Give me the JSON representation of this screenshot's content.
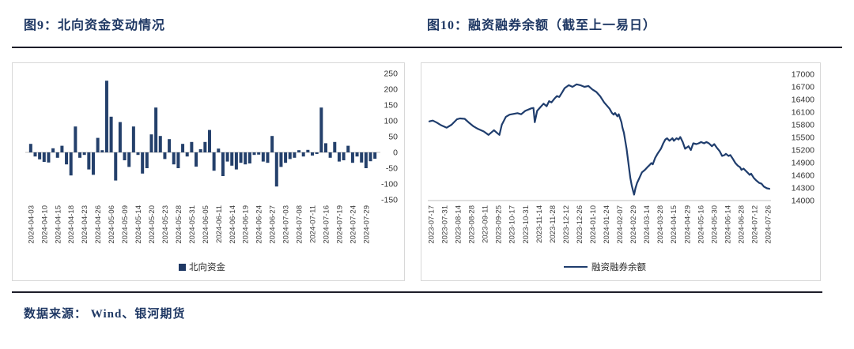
{
  "page": {
    "accent_color": "#1f3864",
    "bar_color": "#24406b",
    "line_color": "#1f3d6d",
    "footer": "数据来源：  Wind、银河期货"
  },
  "figure9": {
    "title": "图9：北向资金变动情况",
    "legend": "北向资金"
  },
  "figure10": {
    "title": "图10：融资融券余额（截至上一易日）",
    "legend": "融资融券余额"
  },
  "chart_data": [
    {
      "type": "bar",
      "title": "图9：北向资金变动情况",
      "legend": "北向资金",
      "bar_color": "#24406b",
      "ylim": [
        -150,
        250
      ],
      "yticks": [
        250,
        200,
        150,
        100,
        50,
        0,
        -50,
        -100,
        -150
      ],
      "grid": false,
      "legend_position": "bottom",
      "label_every": 3,
      "tick_labels": [
        "2024-04-03",
        "2024-04-10",
        "2024-04-15",
        "2024-04-18",
        "2024-04-23",
        "2024-04-26",
        "2024-05-06",
        "2024-05-09",
        "2024-05-14",
        "2024-05-20",
        "2024-05-23",
        "2024-05-28",
        "2024-05-31",
        "2024-06-05",
        "2024-06-11",
        "2024-06-14",
        "2024-06-19",
        "2024-06-24",
        "2024-06-27",
        "2024-07-03",
        "2024-07-08",
        "2024-07-11",
        "2024-07-16",
        "2024-07-19",
        "2024-07-24",
        "2024-07-29"
      ],
      "values": [
        27,
        -13,
        -22,
        -30,
        -32,
        13,
        -17,
        21,
        -38,
        -73,
        82,
        -17,
        -8,
        -54,
        -71,
        46,
        7,
        227,
        113,
        -89,
        96,
        -25,
        -46,
        82,
        -8,
        -67,
        -50,
        57,
        142,
        52,
        -21,
        42,
        -38,
        -50,
        27,
        -13,
        33,
        -45,
        10,
        33,
        71,
        -58,
        12,
        -75,
        -29,
        -42,
        -54,
        -33,
        -38,
        -35,
        -8,
        -7,
        -29,
        -33,
        52,
        -108,
        -46,
        -33,
        -21,
        -17,
        7,
        -13,
        8,
        -10,
        -5,
        142,
        29,
        -17,
        33,
        -29,
        -25,
        21,
        -33,
        -13,
        -32,
        -50,
        -28,
        -20
      ]
    },
    {
      "type": "line",
      "title": "图10：融资融券余额（截至上一易日）",
      "legend": "融资融券余额",
      "line_color": "#1f3d6d",
      "ylim": [
        14000,
        17000
      ],
      "yticks": [
        17000,
        16700,
        16400,
        16100,
        15800,
        15500,
        15200,
        14900,
        14600,
        14300,
        14000
      ],
      "grid": false,
      "legend_position": "bottom",
      "x_tick_labels": [
        "2023-07-17",
        "2023-07-31",
        "2023-08-14",
        "2023-08-28",
        "2023-09-11",
        "2023-09-25",
        "2023-10-17",
        "2023-10-31",
        "2023-11-14",
        "2023-11-28",
        "2023-12-12",
        "2023-12-26",
        "2024-01-10",
        "2024-01-24",
        "2024-02-07",
        "2024-02-29",
        "2024-03-14",
        "2024-03-28",
        "2024-04-15",
        "2024-04-29",
        "2024-05-16",
        "2024-05-30",
        "2024-06-14",
        "2024-06-28",
        "2024-07-12",
        "2024-07-26"
      ],
      "points": [
        [
          0.0,
          15880
        ],
        [
          0.01,
          15900
        ],
        [
          0.022,
          15850
        ],
        [
          0.034,
          15790
        ],
        [
          0.051,
          15730
        ],
        [
          0.065,
          15800
        ],
        [
          0.081,
          15930
        ],
        [
          0.09,
          15950
        ],
        [
          0.104,
          15940
        ],
        [
          0.118,
          15840
        ],
        [
          0.13,
          15760
        ],
        [
          0.143,
          15700
        ],
        [
          0.16,
          15640
        ],
        [
          0.174,
          15560
        ],
        [
          0.19,
          15670
        ],
        [
          0.2,
          15600
        ],
        [
          0.206,
          15560
        ],
        [
          0.213,
          15800
        ],
        [
          0.225,
          15990
        ],
        [
          0.236,
          16040
        ],
        [
          0.259,
          16075
        ],
        [
          0.27,
          16050
        ],
        [
          0.282,
          16130
        ],
        [
          0.3,
          16190
        ],
        [
          0.306,
          16200
        ],
        [
          0.31,
          15860
        ],
        [
          0.317,
          16130
        ],
        [
          0.329,
          16240
        ],
        [
          0.336,
          16300
        ],
        [
          0.345,
          16240
        ],
        [
          0.352,
          16360
        ],
        [
          0.359,
          16330
        ],
        [
          0.368,
          16420
        ],
        [
          0.375,
          16480
        ],
        [
          0.382,
          16460
        ],
        [
          0.391,
          16575
        ],
        [
          0.398,
          16670
        ],
        [
          0.41,
          16740
        ],
        [
          0.421,
          16700
        ],
        [
          0.433,
          16760
        ],
        [
          0.444,
          16740
        ],
        [
          0.456,
          16700
        ],
        [
          0.468,
          16720
        ],
        [
          0.479,
          16640
        ],
        [
          0.491,
          16580
        ],
        [
          0.502,
          16480
        ],
        [
          0.514,
          16330
        ],
        [
          0.53,
          16180
        ],
        [
          0.537,
          16080
        ],
        [
          0.542,
          16040
        ],
        [
          0.546,
          16080
        ],
        [
          0.553,
          16000
        ],
        [
          0.557,
          16050
        ],
        [
          0.565,
          15860
        ],
        [
          0.568,
          15730
        ],
        [
          0.572,
          15610
        ],
        [
          0.576,
          15420
        ],
        [
          0.58,
          15230
        ],
        [
          0.584,
          14980
        ],
        [
          0.588,
          14730
        ],
        [
          0.591,
          14540
        ],
        [
          0.595,
          14360
        ],
        [
          0.599,
          14230
        ],
        [
          0.602,
          14140
        ],
        [
          0.606,
          14290
        ],
        [
          0.611,
          14420
        ],
        [
          0.618,
          14540
        ],
        [
          0.625,
          14670
        ],
        [
          0.634,
          14730
        ],
        [
          0.641,
          14790
        ],
        [
          0.646,
          14830
        ],
        [
          0.653,
          14890
        ],
        [
          0.657,
          14860
        ],
        [
          0.664,
          15010
        ],
        [
          0.671,
          15110
        ],
        [
          0.681,
          15230
        ],
        [
          0.688,
          15360
        ],
        [
          0.694,
          15450
        ],
        [
          0.699,
          15480
        ],
        [
          0.706,
          15420
        ],
        [
          0.715,
          15480
        ],
        [
          0.719,
          15420
        ],
        [
          0.727,
          15480
        ],
        [
          0.733,
          15450
        ],
        [
          0.738,
          15510
        ],
        [
          0.745,
          15390
        ],
        [
          0.752,
          15230
        ],
        [
          0.762,
          15290
        ],
        [
          0.769,
          15200
        ],
        [
          0.776,
          15360
        ],
        [
          0.785,
          15340
        ],
        [
          0.792,
          15360
        ],
        [
          0.799,
          15390
        ],
        [
          0.808,
          15360
        ],
        [
          0.815,
          15390
        ],
        [
          0.822,
          15360
        ],
        [
          0.831,
          15290
        ],
        [
          0.838,
          15340
        ],
        [
          0.845,
          15260
        ],
        [
          0.854,
          15170
        ],
        [
          0.861,
          15060
        ],
        [
          0.868,
          15080
        ],
        [
          0.872,
          15110
        ],
        [
          0.88,
          15060
        ],
        [
          0.885,
          15080
        ],
        [
          0.891,
          15010
        ],
        [
          0.9,
          14890
        ],
        [
          0.907,
          14830
        ],
        [
          0.914,
          14790
        ],
        [
          0.918,
          14730
        ],
        [
          0.924,
          14760
        ],
        [
          0.935,
          14670
        ],
        [
          0.942,
          14610
        ],
        [
          0.946,
          14640
        ],
        [
          0.954,
          14540
        ],
        [
          0.961,
          14480
        ],
        [
          0.97,
          14420
        ],
        [
          0.977,
          14400
        ],
        [
          0.984,
          14330
        ],
        [
          0.993,
          14290
        ],
        [
          1.0,
          14280
        ]
      ]
    }
  ]
}
